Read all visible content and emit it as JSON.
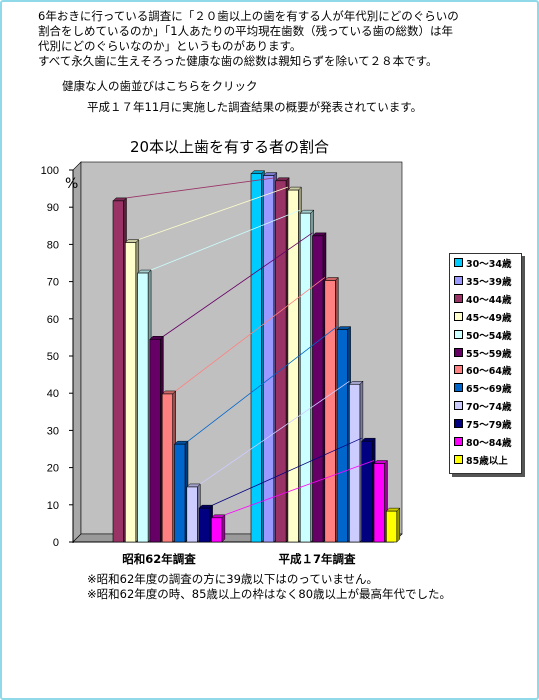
{
  "intro": [
    "6年おきに行っている調査に「２０歯以上の歯を有する人が年代別にどのぐらいの",
    "割合をしめているのか」「1人あたりの平均現在歯数（残っている歯の総数）は年",
    "代別にどのぐらいなのか」というものがあります。",
    "すべて永久歯に生えそろった健康な歯の総数は親知らずを除いて２８本です。"
  ],
  "link_text": "健康な人の歯並びはこちらをクリック",
  "release_text": "平成１７年11月に実施した調査結果の概要が発表されています。",
  "notes": [
    "※昭和62年度の調査の方に39歳以下はのっていません。",
    "※昭和62年度の時、85歳以上の枠はなく80歳以上が最高年代でした。"
  ],
  "colors": {
    "frame": "#8fd9e8",
    "plot_bg": "#c0c0c0"
  },
  "chart_data": {
    "type": "bar",
    "title": "20本以上歯を有する者の割合",
    "ylabel": "%",
    "ylim": [
      0,
      100
    ],
    "yticks": [
      0,
      10,
      20,
      30,
      40,
      50,
      60,
      70,
      80,
      90,
      100
    ],
    "categories": [
      "昭和62年調査",
      "平成１7年調査"
    ],
    "connector_lines": true,
    "legend_position": "right",
    "series": [
      {
        "name": "30～34歳",
        "color": "#00ccff",
        "values": [
          null,
          99.0
        ]
      },
      {
        "name": "35～39歳",
        "color": "#9999ff",
        "values": [
          null,
          98.5
        ]
      },
      {
        "name": "40～44歳",
        "color": "#993366",
        "values": [
          91.7,
          97.1
        ]
      },
      {
        "name": "45～49歳",
        "color": "#ffffcc",
        "values": [
          80.5,
          94.6
        ]
      },
      {
        "name": "50～54歳",
        "color": "#ccffff",
        "values": [
          72.3,
          88.4
        ]
      },
      {
        "name": "55～59歳",
        "color": "#660066",
        "values": [
          54.5,
          82.3
        ]
      },
      {
        "name": "60～64歳",
        "color": "#ff8080",
        "values": [
          39.8,
          70.3
        ]
      },
      {
        "name": "65～69歳",
        "color": "#0066cc",
        "values": [
          26.3,
          57.1
        ]
      },
      {
        "name": "70～74歳",
        "color": "#ccccff",
        "values": [
          14.8,
          42.4
        ]
      },
      {
        "name": "75～79歳",
        "color": "#000080",
        "values": [
          9.1,
          27.1
        ]
      },
      {
        "name": "80～84歳",
        "color": "#ff00ff",
        "values": [
          6.5,
          21.1
        ]
      },
      {
        "name": "85歳以上",
        "color": "#ffff00",
        "values": [
          null,
          8.3
        ]
      }
    ]
  }
}
